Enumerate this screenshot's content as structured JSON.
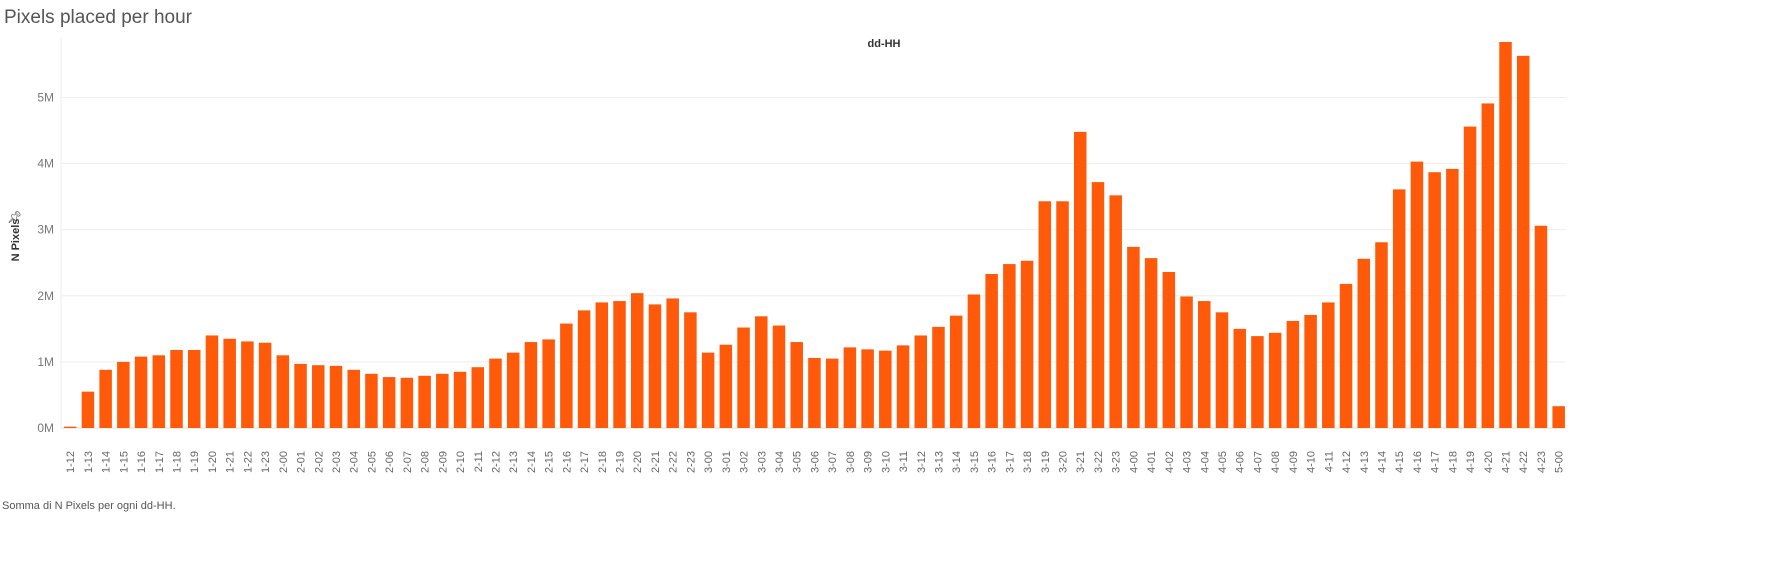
{
  "page": {
    "title": "Pixels placed per hour",
    "caption": "Somma di N Pixels per ogni dd-HH."
  },
  "colors": {
    "bar": "#ff5a0a",
    "grid": "#eeeeee",
    "axis": "#dddddd"
  },
  "chart_data": {
    "type": "bar",
    "title": "Pixels placed per hour",
    "xlabel": "dd-HH",
    "ylabel": "N Pixels",
    "ylim": [
      0,
      5900000
    ],
    "yticks": [
      0,
      1000000,
      2000000,
      3000000,
      4000000,
      5000000
    ],
    "ytick_labels": [
      "0M",
      "1M",
      "2M",
      "3M",
      "4M",
      "5M"
    ],
    "grid": true,
    "categories": [
      "1-12",
      "1-13",
      "1-14",
      "1-15",
      "1-16",
      "1-17",
      "1-18",
      "1-19",
      "1-20",
      "1-21",
      "1-22",
      "1-23",
      "2-00",
      "2-01",
      "2-02",
      "2-03",
      "2-04",
      "2-05",
      "2-06",
      "2-07",
      "2-08",
      "2-09",
      "2-10",
      "2-11",
      "2-12",
      "2-13",
      "2-14",
      "2-15",
      "2-16",
      "2-17",
      "2-18",
      "2-19",
      "2-20",
      "2-21",
      "2-22",
      "2-23",
      "3-00",
      "3-01",
      "3-02",
      "3-03",
      "3-04",
      "3-05",
      "3-06",
      "3-07",
      "3-08",
      "3-09",
      "3-10",
      "3-11",
      "3-12",
      "3-13",
      "3-14",
      "3-15",
      "3-16",
      "3-17",
      "3-18",
      "3-19",
      "3-20",
      "3-21",
      "3-22",
      "3-23",
      "4-00",
      "4-01",
      "4-02",
      "4-03",
      "4-04",
      "4-05",
      "4-06",
      "4-07",
      "4-08",
      "4-09",
      "4-10",
      "4-11",
      "4-12",
      "4-13",
      "4-14",
      "4-15",
      "4-16",
      "4-17",
      "4-18",
      "4-19",
      "4-20",
      "4-21",
      "4-22",
      "4-23",
      "5-00"
    ],
    "values": [
      20000,
      550000,
      880000,
      1000000,
      1080000,
      1100000,
      1180000,
      1180000,
      1400000,
      1350000,
      1310000,
      1290000,
      1100000,
      970000,
      950000,
      940000,
      880000,
      820000,
      770000,
      760000,
      790000,
      820000,
      850000,
      920000,
      1050000,
      1140000,
      1300000,
      1340000,
      1580000,
      1780000,
      1900000,
      1920000,
      2040000,
      1870000,
      1960000,
      1750000,
      1140000,
      1260000,
      1520000,
      1690000,
      1550000,
      1300000,
      1060000,
      1050000,
      1220000,
      1190000,
      1170000,
      1250000,
      1400000,
      1530000,
      1700000,
      2020000,
      2330000,
      2480000,
      2530000,
      3430000,
      3430000,
      4480000,
      3720000,
      3520000,
      2740000,
      2570000,
      2360000,
      1990000,
      1920000,
      1750000,
      1500000,
      1390000,
      1440000,
      1620000,
      1710000,
      1900000,
      2180000,
      2560000,
      2810000,
      3610000,
      4030000,
      3870000,
      3920000,
      4560000,
      4910000,
      5840000,
      5630000,
      3060000,
      330000
    ]
  }
}
